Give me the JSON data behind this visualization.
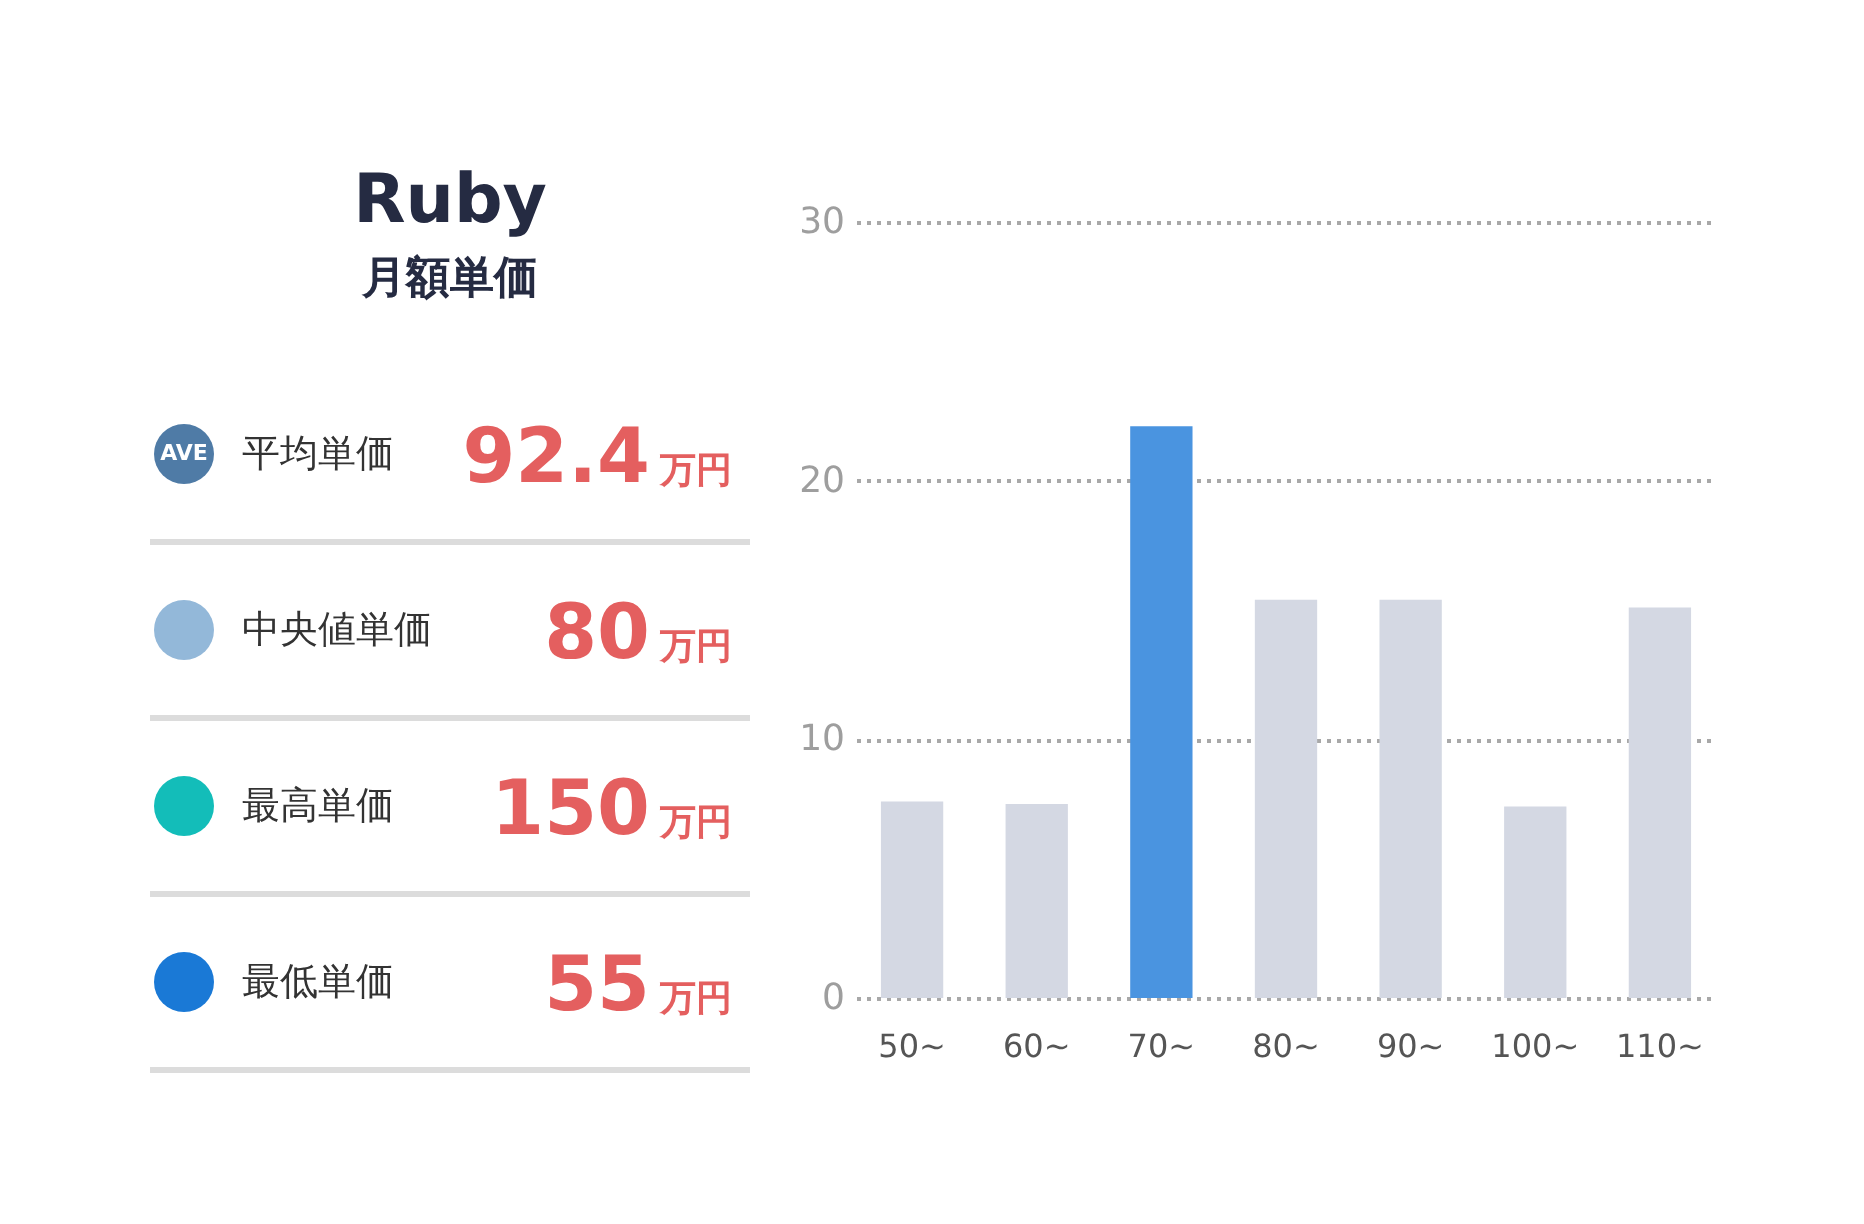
{
  "chart_data": [
    {
      "type": "other",
      "title": "Ruby",
      "subtitle": "月額単価",
      "categories": [
        "平均単価",
        "中央値単価",
        "最高単価",
        "最低単価"
      ],
      "values": [
        92.4,
        80,
        150,
        55
      ],
      "colors": [
        "#4f7ba6",
        "#93b8d9",
        "#13bdb9",
        "#1a79d6"
      ],
      "data_labels": true,
      "ylabel": "万円",
      "annotations": [
        "AVE"
      ]
    },
    {
      "type": "bar",
      "categories": [
        "50~",
        "60~",
        "70~",
        "80~",
        "90~",
        "100~",
        "110~"
      ],
      "values": [
        7.6,
        7.5,
        22.1,
        15.4,
        15.4,
        7.4,
        15.1
      ],
      "colors": [
        "#d4d8e3",
        "#d4d8e3",
        "#4a94e0",
        "#d4d8e3",
        "#d4d8e3",
        "#d4d8e3",
        "#d4d8e3"
      ],
      "ylim": [
        0,
        30
      ],
      "yticks": [
        0,
        10,
        20,
        30
      ],
      "grid": "y"
    }
  ]
}
